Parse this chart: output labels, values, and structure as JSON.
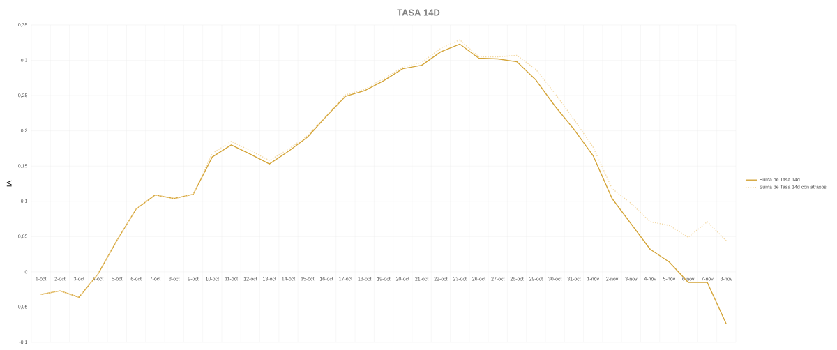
{
  "chart_data": {
    "type": "line",
    "title": "TASA 14D",
    "ylabel": "IA",
    "categories": [
      "1-oct",
      "2-oct",
      "3-oct",
      "4-oct",
      "5-oct",
      "6-oct",
      "7-oct",
      "8-oct",
      "9-oct",
      "10-oct",
      "11-oct",
      "12-oct",
      "13-oct",
      "14-oct",
      "15-oct",
      "16-oct",
      "17-oct",
      "18-oct",
      "19-oct",
      "20-oct",
      "21-oct",
      "22-oct",
      "23-oct",
      "26-oct",
      "27-oct",
      "28-oct",
      "29-oct",
      "30-oct",
      "31-oct",
      "1-nov",
      "2-nov",
      "3-nov",
      "4-nov",
      "5-nov",
      "6-nov",
      "7-nov",
      "8-nov"
    ],
    "series": [
      {
        "name": "Suma de Tasa 14d",
        "color": "#d4a437",
        "line_style": "solid",
        "values": [
          -0.032,
          -0.027,
          -0.036,
          -0.003,
          0.045,
          0.089,
          0.109,
          0.104,
          0.11,
          0.163,
          0.18,
          0.167,
          0.153,
          0.171,
          0.191,
          0.221,
          0.249,
          0.257,
          0.271,
          0.288,
          0.293,
          0.312,
          0.323,
          0.303,
          0.302,
          0.298,
          0.272,
          0.235,
          0.202,
          0.165,
          0.104,
          0.068,
          0.032,
          0.014,
          -0.015,
          -0.015,
          -0.074
        ]
      },
      {
        "name": "Suma de Tasa 14d con atrasos",
        "color": "#f3d9a6",
        "line_style": "dotted",
        "values": [
          -0.032,
          -0.027,
          -0.036,
          -0.003,
          0.045,
          0.089,
          0.109,
          0.104,
          0.11,
          0.168,
          0.185,
          0.172,
          0.158,
          0.174,
          0.193,
          0.222,
          0.251,
          0.259,
          0.274,
          0.29,
          0.297,
          0.317,
          0.329,
          0.305,
          0.305,
          0.307,
          0.287,
          0.253,
          0.216,
          0.177,
          0.118,
          0.097,
          0.071,
          0.066,
          0.049,
          0.071,
          0.044
        ]
      }
    ],
    "ylim": [
      -0.1,
      0.35
    ],
    "yticks": [
      {
        "value": -0.1,
        "label": "-0,1"
      },
      {
        "value": -0.05,
        "label": "-0,05"
      },
      {
        "value": 0,
        "label": "0"
      },
      {
        "value": 0.05,
        "label": "0,05"
      },
      {
        "value": 0.1,
        "label": "0,1"
      },
      {
        "value": 0.15,
        "label": "0,15"
      },
      {
        "value": 0.2,
        "label": "0,2"
      },
      {
        "value": 0.25,
        "label": "0,25"
      },
      {
        "value": 0.3,
        "label": "0,3"
      },
      {
        "value": 0.35,
        "label": "0,35"
      }
    ],
    "grid": true,
    "legend": "right",
    "marker": "none"
  }
}
